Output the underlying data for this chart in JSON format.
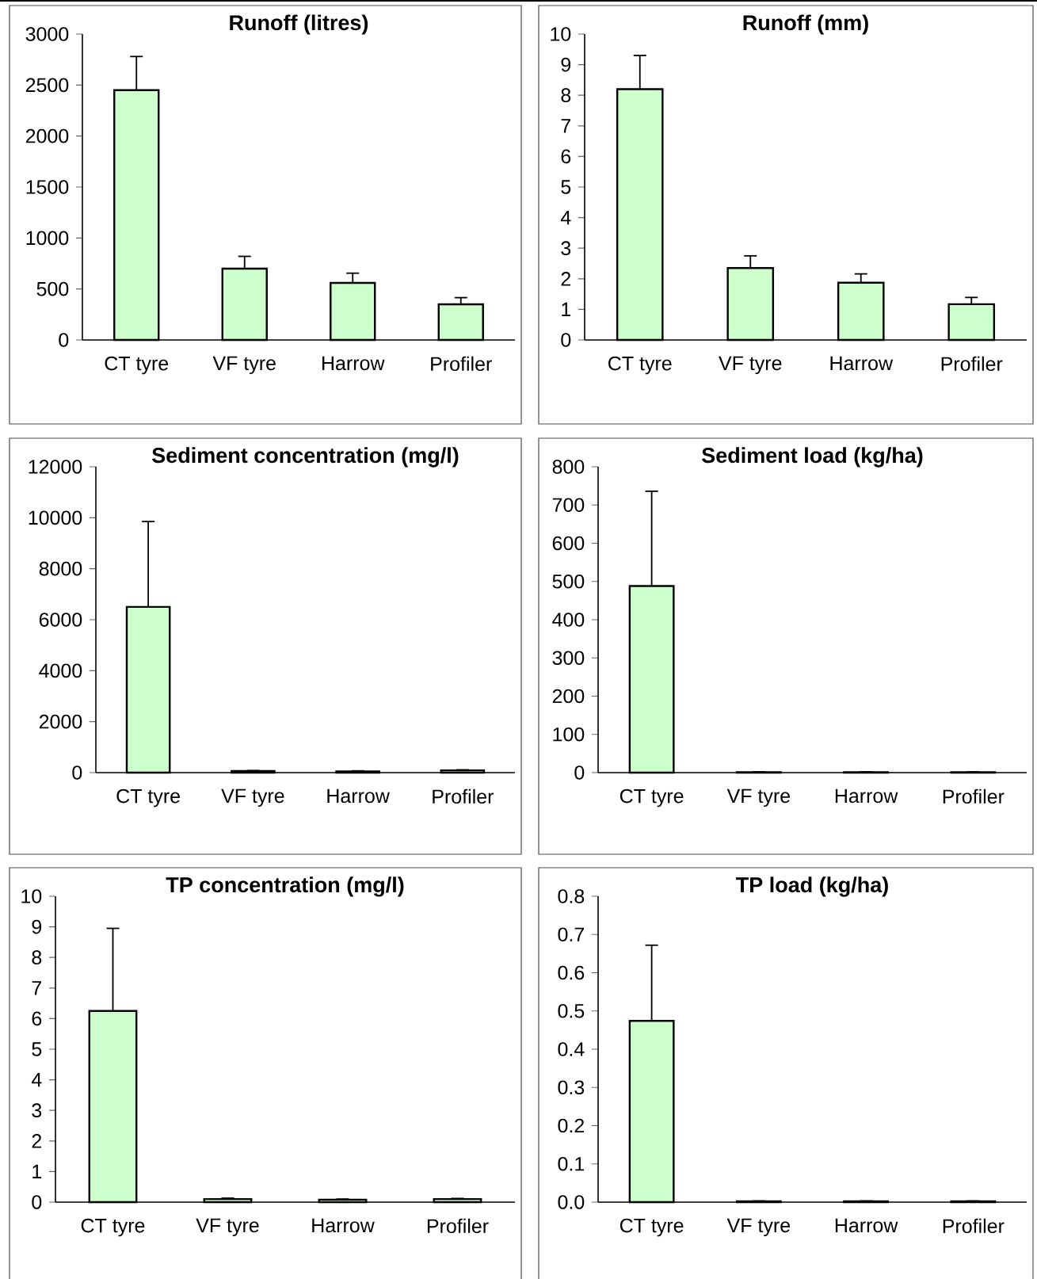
{
  "chart_data": [
    {
      "type": "bar",
      "title": "Runoff (litres)",
      "categories": [
        "CT tyre",
        "VF tyre",
        "Harrow",
        "Profiler"
      ],
      "color": "#ccffcc",
      "values": [
        2450,
        700,
        560,
        350
      ],
      "errors": [
        [
          2450,
          2780
        ],
        [
          700,
          820
        ],
        [
          560,
          655
        ],
        [
          350,
          415
        ]
      ],
      "ylim": [
        0,
        3000
      ],
      "yticks": [
        0,
        500,
        1000,
        1500,
        2000,
        2500,
        3000
      ]
    },
    {
      "type": "bar",
      "title": "Runoff (mm)",
      "categories": [
        "CT tyre",
        "VF tyre",
        "Harrow",
        "Profiler"
      ],
      "color": "#ccffcc",
      "values": [
        8.2,
        2.35,
        1.87,
        1.17
      ],
      "errors": [
        [
          8.2,
          9.3
        ],
        [
          2.35,
          2.75
        ],
        [
          1.87,
          2.16
        ],
        [
          1.17,
          1.39
        ]
      ],
      "ylim": [
        0,
        10
      ],
      "yticks": [
        0,
        1,
        2,
        3,
        4,
        5,
        6,
        7,
        8,
        9,
        10
      ]
    },
    {
      "type": "bar",
      "title": "Sediment concentration (mg/l)",
      "categories": [
        "CT tyre",
        "VF tyre",
        "Harrow",
        "Profiler"
      ],
      "color": "#ccffcc",
      "values": [
        6500,
        60,
        50,
        90
      ],
      "errors": [
        [
          6500,
          9850
        ],
        [
          60,
          80
        ],
        [
          50,
          70
        ],
        [
          90,
          110
        ]
      ],
      "ylim": [
        0,
        12000
      ],
      "yticks": [
        0,
        2000,
        4000,
        6000,
        8000,
        10000,
        12000
      ]
    },
    {
      "type": "bar",
      "title": "Sediment load (kg/ha)",
      "categories": [
        "CT tyre",
        "VF tyre",
        "Harrow",
        "Profiler"
      ],
      "color": "#ccffcc",
      "values": [
        488,
        1,
        1,
        1
      ],
      "errors": [
        [
          488,
          736
        ],
        [
          1,
          2
        ],
        [
          1,
          2
        ],
        [
          1,
          2
        ]
      ],
      "ylim": [
        0,
        800
      ],
      "yticks": [
        0,
        100,
        200,
        300,
        400,
        500,
        600,
        700,
        800
      ]
    },
    {
      "type": "bar",
      "title": "TP concentration (mg/l)",
      "categories": [
        "CT tyre",
        "VF tyre",
        "Harrow",
        "Profiler"
      ],
      "color": "#ccffcc",
      "values": [
        6.25,
        0.1,
        0.08,
        0.1
      ],
      "errors": [
        [
          6.25,
          8.95
        ],
        [
          0.1,
          0.13
        ],
        [
          0.08,
          0.1
        ],
        [
          0.1,
          0.12
        ]
      ],
      "ylim": [
        0,
        10
      ],
      "yticks": [
        0,
        1,
        2,
        3,
        4,
        5,
        6,
        7,
        8,
        9,
        10
      ]
    },
    {
      "type": "bar",
      "title": "TP load (kg/ha)",
      "categories": [
        "CT tyre",
        "VF tyre",
        "Harrow",
        "Profiler"
      ],
      "color": "#ccffcc",
      "values": [
        0.474,
        0.002,
        0.002,
        0.002
      ],
      "errors": [
        [
          0.474,
          0.672
        ],
        [
          0.002,
          0.003
        ],
        [
          0.002,
          0.003
        ],
        [
          0.002,
          0.003
        ]
      ],
      "ylim": [
        0,
        0.8
      ],
      "yticks": [
        {
          "value": 0,
          "label": "0.0"
        },
        0.1,
        0.2,
        0.3,
        0.4,
        0.5,
        0.6,
        0.7,
        0.8
      ]
    }
  ]
}
